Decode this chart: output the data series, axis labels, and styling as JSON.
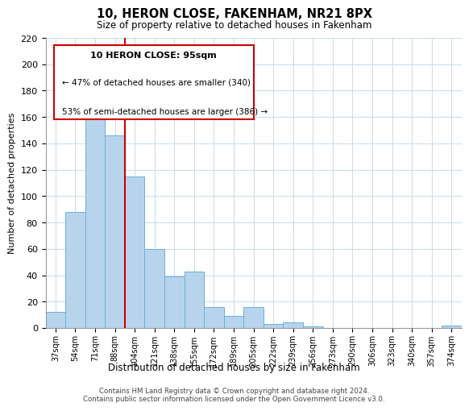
{
  "title": "10, HERON CLOSE, FAKENHAM, NR21 8PX",
  "subtitle": "Size of property relative to detached houses in Fakenham",
  "xlabel": "Distribution of detached houses by size in Fakenham",
  "ylabel": "Number of detached properties",
  "categories": [
    "37sqm",
    "54sqm",
    "71sqm",
    "88sqm",
    "104sqm",
    "121sqm",
    "138sqm",
    "155sqm",
    "172sqm",
    "189sqm",
    "205sqm",
    "222sqm",
    "239sqm",
    "256sqm",
    "273sqm",
    "290sqm",
    "306sqm",
    "323sqm",
    "340sqm",
    "357sqm",
    "374sqm"
  ],
  "values": [
    12,
    88,
    179,
    146,
    115,
    60,
    39,
    43,
    16,
    9,
    16,
    3,
    4,
    1,
    0,
    0,
    0,
    0,
    0,
    0,
    2
  ],
  "bar_color": "#b8d4ec",
  "bar_edge_color": "#6aaed6",
  "ylim": [
    0,
    220
  ],
  "yticks": [
    0,
    20,
    40,
    60,
    80,
    100,
    120,
    140,
    160,
    180,
    200,
    220
  ],
  "property_label": "10 HERON CLOSE: 95sqm",
  "annotation_line1": "← 47% of detached houses are smaller (340)",
  "annotation_line2": "53% of semi-detached houses are larger (386) →",
  "vline_position": 3.5,
  "footnote1": "Contains HM Land Registry data © Crown copyright and database right 2024.",
  "footnote2": "Contains public sector information licensed under the Open Government Licence v3.0.",
  "background_color": "#ffffff",
  "grid_color": "#ccdded",
  "vline_color": "#cc0000",
  "box_edgecolor": "#cc0000"
}
